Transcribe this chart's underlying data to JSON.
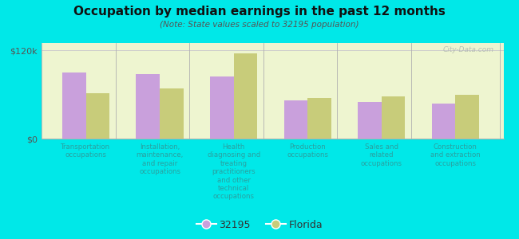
{
  "title": "Occupation by median earnings in the past 12 months",
  "subtitle": "(Note: State values scaled to 32195 population)",
  "background_color": "#00e8e8",
  "plot_bg_top": "#e8f0c8",
  "plot_bg_bottom": "#f8faf0",
  "categories": [
    "Transportation\noccupations",
    "Installation,\nmaintenance,\nand repair\noccupations",
    "Health\ndiagnosing and\ntreating\npractitioners\nand other\ntechnical\noccupations",
    "Production\noccupations",
    "Sales and\nrelated\noccupations",
    "Construction\nand extraction\noccupations"
  ],
  "values_32195": [
    90000,
    88000,
    84000,
    52000,
    50000,
    48000
  ],
  "values_florida": [
    62000,
    68000,
    116000,
    55000,
    57000,
    60000
  ],
  "color_32195": "#c9a0dc",
  "color_florida": "#c8cc7a",
  "ylim": [
    0,
    130000
  ],
  "ytick_labels": [
    "$0",
    "$120k"
  ],
  "ytick_values": [
    0,
    120000
  ],
  "legend_labels": [
    "32195",
    "Florida"
  ],
  "bar_width": 0.32,
  "watermark": "City-Data.com",
  "label_color": "#2aa0a0",
  "separator_color": "#b0b0b0",
  "spine_color": "#b0b0b0"
}
